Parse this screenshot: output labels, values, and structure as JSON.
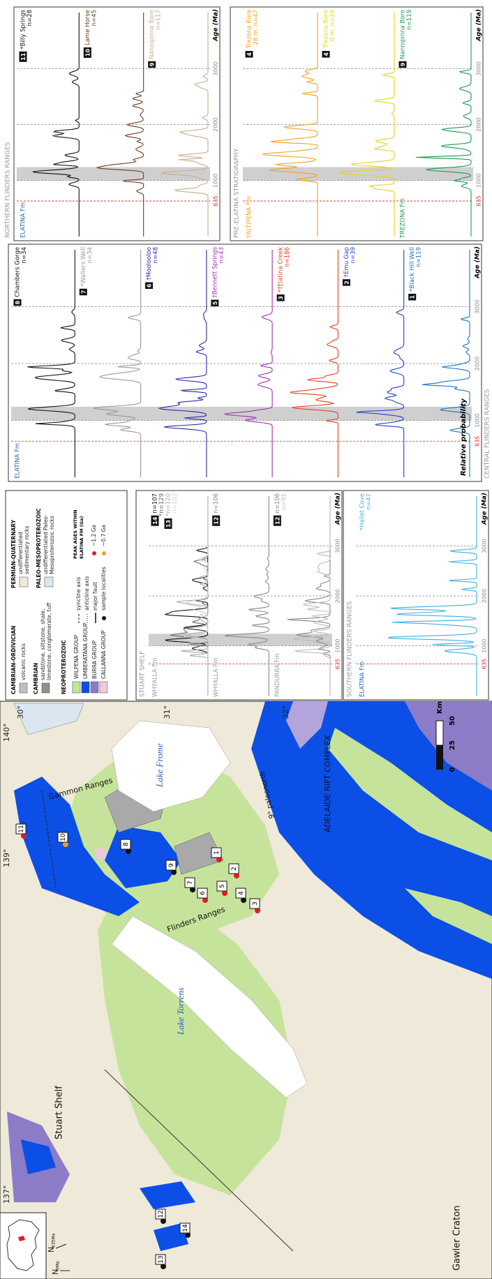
{
  "map": {
    "meridians": [
      "137°",
      "139°",
      "140°"
    ],
    "parallels": [
      "30°",
      "31°",
      "32°"
    ],
    "regions": [
      "Stuart Shelf",
      "Gawler Craton",
      "Lake Torrens",
      "Flinders Ranges",
      "Lake Frome",
      "Gammon Ranges",
      "ADELAIDE RIFT COMPLEX"
    ],
    "paleonorth": "9° paleonorth",
    "inset": {
      "north": "N",
      "north_0": "0Ma",
      "north_635": "635Ma"
    },
    "scale": [
      "0",
      "25",
      "50",
      "Km"
    ],
    "samples": [
      "1",
      "2",
      "3",
      "4",
      "5",
      "6",
      "7",
      "8",
      "9",
      "10",
      "11",
      "12",
      "13",
      "14"
    ]
  },
  "legend": {
    "cambro_ordovician": "CAMBRIAN-ORDIVICIAN",
    "volcanic": "volcanic rocks",
    "cambrian": "CAMBRIAN",
    "cambrian_desc": [
      "sandstone, siltstone, shale,",
      "limestone, conglomerate, tuff"
    ],
    "neoproterozoic": "NEOPROTEROZOIC",
    "groups": [
      "WILPENA GROUP",
      "UMBERATANA GROUP",
      "BURRA GROUP",
      "CALLANNA GROUP"
    ],
    "permian": "PERMIAN-QUATERNARY",
    "permian_desc": [
      "undifferentiated",
      "sedimentary rocks"
    ],
    "paleo": "PALEO-MESOPROTEROZOIC",
    "paleo_desc": [
      "undifferentiated Paleo-",
      "Mesoproterozoic rocks"
    ],
    "symbols": [
      "syncline axis",
      "anticline axis",
      "major fault",
      "sample localities"
    ],
    "peak_title": [
      "PEAK AGES WITHIN",
      "ELATINA FM (Ga)"
    ],
    "peaks": [
      "~1.2 Ga",
      "~0.7 Ga"
    ]
  },
  "panels": [
    {
      "title": "STUART SHELF",
      "xlim": [
        0,
        4000
      ],
      "xticks": [
        635,
        1000,
        2000,
        3000
      ],
      "xtick_colors": [
        "#e02020",
        "#888888",
        "#888888",
        "#888888"
      ],
      "axis_label": "Age (Ma)",
      "tracks": [
        {
          "formation": "WHYALLA Fm",
          "formation_color": "#9a9a9a",
          "samples": [
            {
              "number": "14",
              "n": "n=107",
              "color": "#111111"
            },
            {
              "n": "*n=129",
              "color": "#666666"
            },
            {
              "number": "13",
              "n": "*n=120",
              "color": "#aaaaaa"
            },
            {
              "n": "n=103",
              "color": "#d2d2d2"
            }
          ]
        },
        {
          "formation": "WHYALLA Fm",
          "formation_color": "#9a9a9a",
          "samples": [
            {
              "number": "12",
              "n": "n=106",
              "color": "#888888"
            }
          ]
        },
        {
          "formation": "PANDURRA Fm",
          "formation_color": "#9a9a9a",
          "samples": [
            {
              "number": "12",
              "n": "n=106",
              "color": "#888888"
            },
            {
              "n": "n=91",
              "color": "#bbbbbb"
            }
          ]
        }
      ]
    },
    {
      "title": "SOUTHERN FLINDERS RANGES",
      "xlim": [
        0,
        4000
      ],
      "xticks": [
        635,
        1000,
        2000,
        3000
      ],
      "xtick_colors": [
        "#e02020",
        "#888888",
        "#888888",
        "#888888"
      ],
      "axis_label": "Age (Ma)",
      "tracks": [
        {
          "formation": "ELATINA Fm",
          "formation_color": "#1e64b4",
          "samples": [
            {
              "name": "*Hallet Cove",
              "n": "n=47",
              "color": "#3bb0e0"
            }
          ]
        }
      ]
    },
    {
      "title": "CENTRAL FLINDERS RANGES",
      "y_label": "Relative probability",
      "xlim": [
        0,
        4000
      ],
      "xticks": [
        635,
        1000,
        2000,
        3000
      ],
      "xtick_colors": [
        "#e02020",
        "#888888",
        "#888888",
        "#888888"
      ],
      "axis_label": "Age (Ma)",
      "tracks": [
        {
          "formation": "ELATINA Fm",
          "formation_color": "#1e64b4",
          "samples": [
            {
              "number": "8",
              "name": "Chambers Gorge",
              "n": "n=34",
              "color": "#111111"
            }
          ]
        },
        {
          "samples": [
            {
              "number": "7",
              "name": "*Walters Well",
              "n": "n=34",
              "color": "#999999"
            }
          ]
        },
        {
          "samples": [
            {
              "number": "6",
              "name": "†Moolooloo",
              "n": "n=48",
              "color": "#2a2aa8"
            }
          ]
        },
        {
          "samples": [
            {
              "number": "5",
              "name": "†Bennett Springs",
              "n": "n=43",
              "color": "#a030a8"
            }
          ]
        },
        {
          "samples": [
            {
              "number": "3",
              "name": "*†Elatina Creek",
              "n": "n=186",
              "color": "#e8401c"
            }
          ]
        },
        {
          "samples": [
            {
              "number": "2",
              "name": "†Emu Gap",
              "n": "n=39",
              "color": "#1f3fd0"
            }
          ]
        },
        {
          "samples": [
            {
              "number": "1",
              "name": "*Black Hill Well",
              "n": "n=119",
              "color": "#1a74c8"
            }
          ]
        }
      ]
    },
    {
      "title": "NORTHERN FLINDERS RANGES",
      "xlim": [
        0,
        4000
      ],
      "xticks": [
        635,
        1000,
        2000,
        3000
      ],
      "xtick_colors": [
        "#e02020",
        "#888888",
        "#888888",
        "#888888"
      ],
      "axis_label": "Age (Ma)",
      "tracks": [
        {
          "formation": "ELATINA Fm",
          "formation_color": "#1e64b4",
          "samples": [
            {
              "number": "11",
              "name": "*Billy Springs",
              "n": "n=28",
              "color": "#111111"
            }
          ]
        },
        {
          "samples": [
            {
              "number": "10",
              "name": "Lame Horse",
              "n": "n=45",
              "color": "#6b3d1e"
            }
          ]
        },
        {
          "samples": [
            {
              "number": "9",
              "name": "Nannipinna Bore",
              "n": "n=117",
              "color": "#c4ad8c"
            }
          ]
        }
      ]
    },
    {
      "title": "PRE-ELATINA STRATIGRAPHY",
      "xlim": [
        0,
        4000
      ],
      "xticks": [
        635,
        1000,
        2000,
        3000
      ],
      "xtick_colors": [
        "#e02020",
        "#888888",
        "#888888",
        "#888888"
      ],
      "axis_label": "Age (Ma)",
      "tracks": [
        {
          "formation": "YALTIPENA Fm",
          "formation_color": "#f0a020",
          "samples": [
            {
              "number": "4",
              "name": "Trezona Bore",
              "n": "28 m, n=47",
              "color": "#f0a020"
            }
          ]
        },
        {
          "samples": [
            {
              "number": "4",
              "name": "Trezona Bore",
              "n": "0 m, n=24",
              "color": "#e8d020"
            }
          ]
        },
        {
          "formation": "TREZONA Fm",
          "formation_color": "#1a9a50",
          "samples": [
            {
              "number": "9",
              "name": "Nannipinna Bore",
              "n": "n=119",
              "color": "#1a9a50"
            }
          ]
        }
      ]
    }
  ]
}
